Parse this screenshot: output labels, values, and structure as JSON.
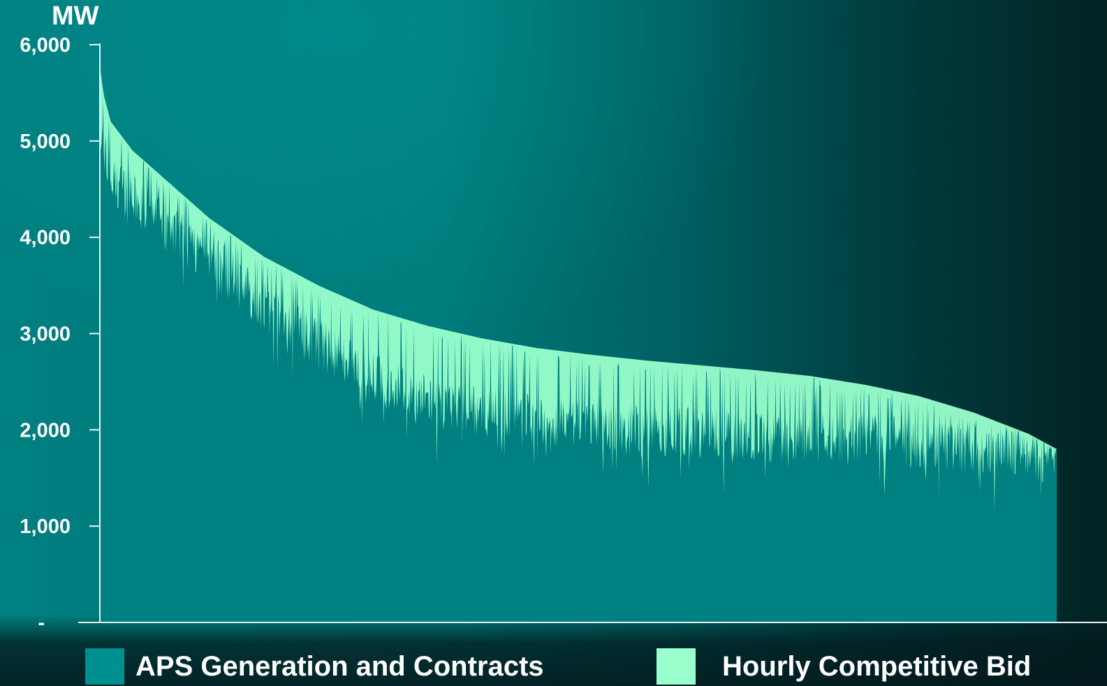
{
  "chart_data": {
    "type": "area",
    "unit_label": "MW",
    "y_ticks": [
      "6,000",
      "5,000",
      "4,000",
      "3,000",
      "2,000",
      "1,000",
      "-"
    ],
    "ylim": [
      0,
      6000
    ],
    "x_range": [
      0,
      8760
    ],
    "grid": false,
    "legend_position": "bottom",
    "series": [
      {
        "name": "APS Generation and Contracts",
        "color": "#008080",
        "x": [
          0,
          100,
          500,
          1000,
          1500,
          2000,
          2500,
          3000,
          3500,
          4000,
          4500,
          5000,
          5500,
          6000,
          6500,
          7000,
          7500,
          8000,
          8500,
          8760
        ],
        "values": [
          5100,
          4600,
          4200,
          3800,
          3300,
          2900,
          2550,
          2300,
          2200,
          2100,
          2050,
          2000,
          1980,
          1950,
          1920,
          1900,
          1850,
          1820,
          1750,
          1700
        ]
      },
      {
        "name": "Hourly Competitive Bid",
        "color": "#99ffcc",
        "x": [
          0,
          30,
          100,
          300,
          600,
          1000,
          1500,
          2000,
          2500,
          3000,
          3500,
          4000,
          4500,
          5000,
          5500,
          6000,
          6500,
          7000,
          7500,
          8000,
          8500,
          8760
        ],
        "values": [
          5800,
          5500,
          5200,
          4900,
          4600,
          4200,
          3800,
          3500,
          3250,
          3080,
          2950,
          2850,
          2780,
          2720,
          2670,
          2620,
          2560,
          2470,
          2350,
          2180,
          1960,
          1800
        ]
      }
    ]
  },
  "legend": [
    {
      "label": "APS Generation and Contracts",
      "color": "#00908f"
    },
    {
      "label": "Hourly Competitive Bid",
      "color": "#99ffcc"
    }
  ]
}
